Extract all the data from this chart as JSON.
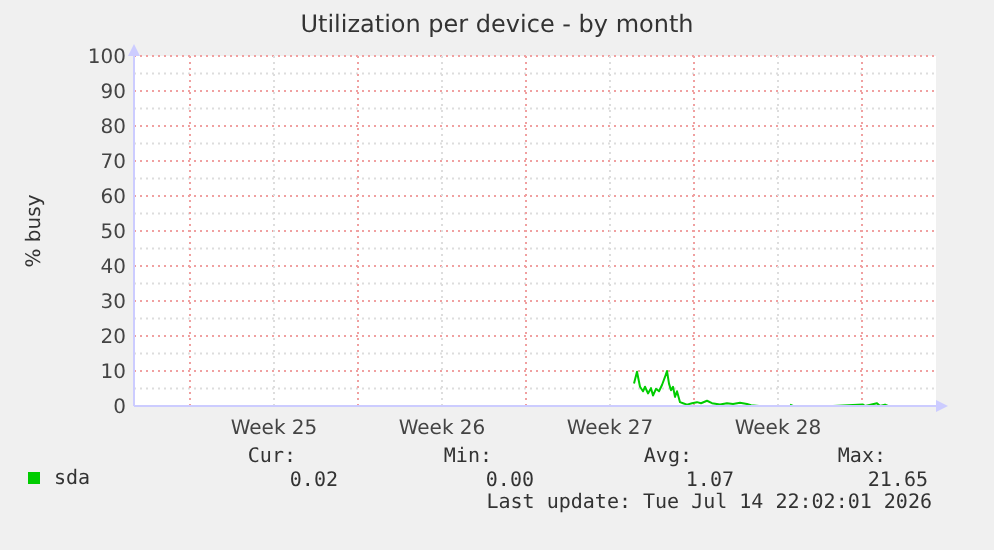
{
  "chart_data": {
    "type": "line",
    "title": "Utilization per device - by month",
    "ylabel": "% busy",
    "xlim": [
      "2026-06-12T16:00",
      "2026-07-16T02:00"
    ],
    "xticks": [
      {
        "value": "2026-06-15",
        "label": null
      },
      {
        "value": "2026-06-18T12:00",
        "label": "Week 25"
      },
      {
        "value": "2026-06-22",
        "label": null
      },
      {
        "value": "2026-06-25T12:00",
        "label": "Week 26"
      },
      {
        "value": "2026-06-29",
        "label": null
      },
      {
        "value": "2026-07-02T12:00",
        "label": "Week 27"
      },
      {
        "value": "2026-07-06",
        "label": null
      },
      {
        "value": "2026-07-09T12:00",
        "label": "Week 28"
      },
      {
        "value": "2026-07-13",
        "label": null
      }
    ],
    "ylim": [
      0,
      100
    ],
    "yticks": [
      0,
      {
        "value": 5,
        "label": null
      },
      10,
      {
        "value": 15,
        "label": null
      },
      20,
      {
        "value": 25,
        "label": null
      },
      30,
      {
        "value": 35,
        "label": null
      },
      40,
      {
        "value": 45,
        "label": null
      },
      50,
      {
        "value": 55,
        "label": null
      },
      60,
      {
        "value": 65,
        "label": null
      },
      70,
      {
        "value": 75,
        "label": null
      },
      80,
      {
        "value": 85,
        "label": null
      },
      90,
      {
        "value": 95,
        "label": null
      },
      100
    ],
    "grid": true,
    "legend": "bottom",
    "marker": "none",
    "line_style": "solid",
    "x": [
      "2026-07-03T12:00",
      "2026-07-03T15:00",
      "2026-07-03T18:00",
      "2026-07-03T21:00",
      "2026-07-03T23:00",
      "2026-07-04T02:00",
      "2026-07-04T05:00",
      "2026-07-04T07:00",
      "2026-07-04T10:00",
      "2026-07-04T13:00",
      "2026-07-04T16:00",
      "2026-07-04T19:00",
      "2026-07-04T21:00",
      "2026-07-04T23:00",
      "2026-07-05T01:00",
      "2026-07-05T03:00",
      "2026-07-05T05:00",
      "2026-07-05T07:00",
      "2026-07-05T10:00",
      "2026-07-05T13:00",
      "2026-07-05T17:00",
      "2026-07-05T22:00",
      "2026-07-06T03:00",
      "2026-07-06T07:00",
      "2026-07-06T13:00",
      "2026-07-06T18:00",
      "2026-07-07T02:00",
      "2026-07-07T09:00",
      "2026-07-07T15:00",
      "2026-07-07T22:00",
      "2026-07-08T05:00",
      "2026-07-08T09:00",
      "2026-07-08T17:00",
      "2026-07-09T00:00",
      "2026-07-10T00:00",
      "2026-07-10T03:00",
      "2026-07-11T19:00",
      "2026-07-13T01:00",
      "2026-07-13T03:00",
      "2026-07-13T15:00",
      "2026-07-13T18:00",
      "2026-07-13T23:00",
      "2026-07-14T02:00",
      "2026-07-15T22:00"
    ],
    "series": [
      {
        "name": "sda",
        "color": "#00cc00",
        "values": [
          6.4,
          9.8,
          5.5,
          4.2,
          5.5,
          3.6,
          5.1,
          3.0,
          4.9,
          4.2,
          6.0,
          8.3,
          10,
          6.4,
          4.5,
          5.5,
          2.6,
          4.2,
          1.1,
          0.8,
          0.4,
          0.8,
          1.1,
          0.8,
          1.5,
          0.8,
          0.4,
          0.8,
          0.6,
          0.9,
          0.6,
          0.2,
          0,
          null,
          0.4,
          0,
          0,
          0.4,
          0,
          0.8,
          0,
          0.4,
          0,
          0
        ]
      }
    ],
    "annotations": [
      "Cur:",
      "Min:",
      "Avg:",
      "Max:",
      "0.02",
      "0.00",
      "1.07",
      "21.65",
      "Last update: Tue Jul 14 22:02:01 2026"
    ]
  }
}
